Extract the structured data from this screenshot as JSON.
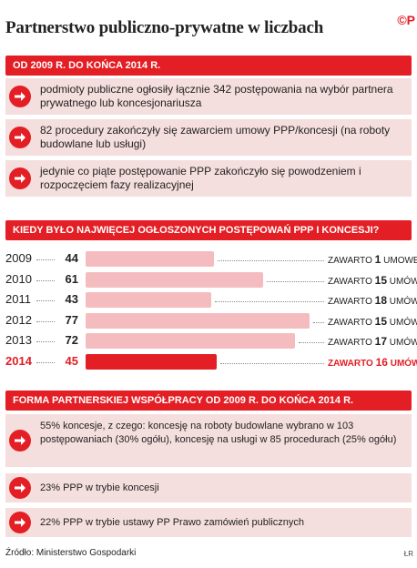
{
  "header": {
    "title": "Partnerstwo publiczno-prywatne w liczbach",
    "logo": "©P"
  },
  "section1": {
    "heading": "OD 2009 R. DO KOŃCA 2014 R.",
    "items": [
      "podmioty publiczne ogłosiły łącznie 342 postępowania na wybór partnera prywatnego lub koncesjonariusza",
      "82 procedury zakończyły się zawarciem umowy PPP/koncesji (na roboty budowlane lub usługi)",
      "jedynie co piąte postępowanie PPP zakończyło się powodzeniem i rozpoczęciem fazy realizacyjnej"
    ]
  },
  "section2": {
    "heading": "KIEDY BYŁO NAJWIĘCEJ OGŁOSZONYCH POSTĘPOWAŃ PPP I KONCESJI?"
  },
  "chart_data": {
    "type": "bar",
    "orientation": "horizontal",
    "categories": [
      "2009",
      "2010",
      "2011",
      "2012",
      "2013",
      "2014"
    ],
    "values": [
      44,
      61,
      43,
      77,
      72,
      45
    ],
    "contracts_prefix": "ZAWARTO",
    "contracts": [
      1,
      15,
      18,
      15,
      17,
      16
    ],
    "contracts_suffix": [
      "UMOWĘ",
      "UMÓW",
      "UMÓW",
      "UMÓW",
      "UMÓW",
      "UMÓW"
    ],
    "highlight_index": 5,
    "xlim": [
      0,
      80
    ],
    "colors": {
      "bar": "#f5bcc0",
      "highlight": "#e31e24"
    }
  },
  "section3": {
    "heading": "FORMA PARTNERSKIEJ WSPÓŁPRACY OD 2009 R. DO KOŃCA 2014 R.",
    "items": [
      "55% koncesje, z czego: koncesję na roboty budowlane wybrano w 103 postępowaniach (30% ogółu), koncesję na usługi w 85 procedurach (25% ogółu)",
      "23% PPP w trybie koncesji",
      "22% PPP w trybie ustawy PP Prawo zamówień publicznych"
    ]
  },
  "footer": {
    "source": "Źródło: Ministerstwo Gospodarki",
    "tag": "ŁR"
  },
  "colors": {
    "accent": "#e31e24",
    "item_bg": "#f5dede"
  }
}
